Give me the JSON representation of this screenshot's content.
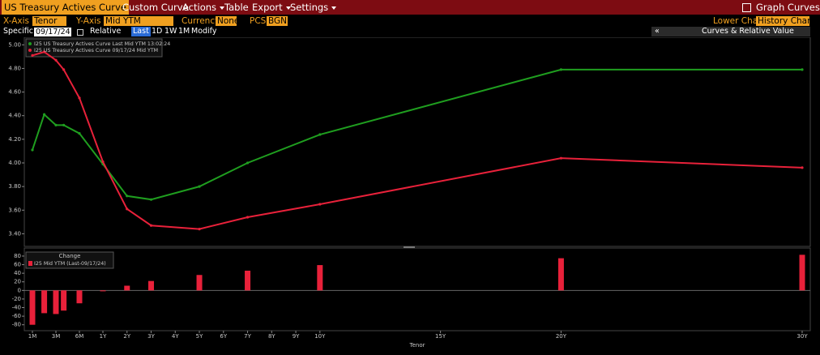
{
  "ui": {
    "menu": [
      "US Treasury Actives Curve",
      "Custom Curve",
      "Actions",
      "Table",
      "Export",
      "Settings"
    ],
    "graph_button": "Graph Curves",
    "fields": [
      {
        "label": "X-Axis",
        "value": "Tenor"
      },
      {
        "label": "Y-Axis",
        "value": "Mid YTM"
      },
      {
        "label": "Currency",
        "value": "None"
      },
      {
        "label": "PCS",
        "value": "BGN"
      }
    ],
    "lower_chart": {
      "label": "Lower Chart",
      "value": "History Chart"
    },
    "specific": {
      "label": "Specific",
      "value": "09/17/24"
    },
    "relative": {
      "label": "Relative",
      "options": [
        "Last",
        "1D",
        "1W",
        "1M"
      ],
      "modify": "Modify"
    },
    "panel": {
      "collapse": "«",
      "title": "Curves & Relative Value"
    }
  },
  "chart_data": [
    {
      "type": "line",
      "x": [
        0.083,
        0.167,
        0.25,
        0.333,
        0.5,
        1,
        2,
        3,
        5,
        7,
        10,
        20,
        30
      ],
      "xlim": [
        0.083,
        30
      ],
      "ylim": [
        3.3,
        5.05
      ],
      "yticks": [
        {
          "value": 5,
          "label": "5.00"
        },
        {
          "value": 4.8,
          "label": "4.80"
        },
        {
          "value": 4.6,
          "label": "4.60"
        },
        {
          "value": 4.4,
          "label": "4.40"
        },
        {
          "value": 4.2,
          "label": "4.20"
        },
        {
          "value": 4,
          "label": "4.00"
        },
        {
          "value": 3.8,
          "label": "3.80"
        },
        {
          "value": 3.6,
          "label": "3.60"
        },
        {
          "value": 3.4,
          "label": "3.40"
        }
      ],
      "legend": "top-left",
      "series": [
        {
          "name": "I25 US Treasury Actives Curve Last Mid YTM 13:02:24",
          "color": "#1f9e1f",
          "values": [
            4.11,
            4.41,
            4.32,
            4.32,
            4.25,
            3.99,
            3.72,
            3.69,
            3.8,
            4.0,
            4.24,
            4.79,
            4.79
          ]
        },
        {
          "name": "I25 US Treasury Actives Curve 09/17/24 Mid YTM",
          "color": "#e8213a",
          "values": [
            4.91,
            4.94,
            4.87,
            4.79,
            4.55,
            4.01,
            3.61,
            3.47,
            3.44,
            3.54,
            3.65,
            4.04,
            3.96
          ]
        }
      ]
    },
    {
      "type": "bar",
      "legend_title": "Change",
      "x": [
        0.083,
        0.167,
        0.25,
        0.333,
        0.5,
        1,
        2,
        3,
        5,
        7,
        10,
        20,
        30
      ],
      "xlim": [
        0.083,
        30
      ],
      "xticks": [
        {
          "value": 0.083,
          "label": "1M"
        },
        {
          "value": 0.25,
          "label": "3M"
        },
        {
          "value": 0.5,
          "label": "6M"
        },
        {
          "value": 1,
          "label": "1Y"
        },
        {
          "value": 2,
          "label": "2Y"
        },
        {
          "value": 3,
          "label": "3Y"
        },
        {
          "value": 4,
          "label": "4Y"
        },
        {
          "value": 5,
          "label": "5Y"
        },
        {
          "value": 6,
          "label": "6Y"
        },
        {
          "value": 7,
          "label": "7Y"
        },
        {
          "value": 8,
          "label": "8Y"
        },
        {
          "value": 9,
          "label": "9Y"
        },
        {
          "value": 10,
          "label": "10Y"
        },
        {
          "value": 15,
          "label": "15Y"
        },
        {
          "value": 20,
          "label": "20Y"
        },
        {
          "value": 30,
          "label": "30Y"
        }
      ],
      "xlabel": "Tenor",
      "ylim": [
        -90,
        95
      ],
      "yticks": [
        80,
        60,
        40,
        20,
        0,
        -20,
        -40,
        -60,
        -80
      ],
      "legend": "top-left",
      "series": [
        {
          "name": "I25 Mid YTM (Last-09/17/24)",
          "color": "#e8213a",
          "values": [
            -80,
            -53,
            -55,
            -47,
            -30,
            -2,
            11,
            22,
            36,
            46,
            59,
            75,
            83
          ]
        }
      ]
    }
  ]
}
